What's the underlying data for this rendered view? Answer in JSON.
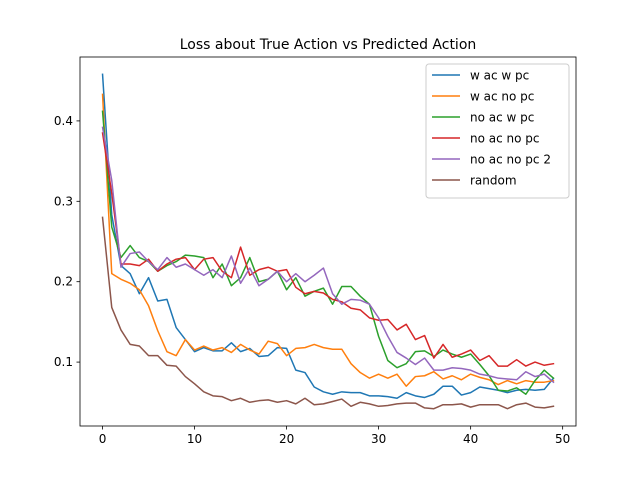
{
  "chart_data": {
    "type": "line",
    "title": "Loss about True Action vs Predicted Action",
    "xlabel": "",
    "ylabel": "",
    "xlim": [
      -2.45,
      51.45
    ],
    "ylim": [
      0.0205,
      0.4795
    ],
    "xticks": [
      0,
      10,
      20,
      30,
      40,
      50
    ],
    "yticks": [
      0.1,
      0.2,
      0.3,
      0.4
    ],
    "grid": false,
    "legend_position": "top-right",
    "x": [
      0,
      1,
      2,
      3,
      4,
      5,
      6,
      7,
      8,
      9,
      10,
      11,
      12,
      13,
      14,
      15,
      16,
      17,
      18,
      19,
      20,
      21,
      22,
      23,
      24,
      25,
      26,
      27,
      28,
      29,
      30,
      31,
      32,
      33,
      34,
      35,
      36,
      37,
      38,
      39,
      40,
      41,
      42,
      43,
      44,
      45,
      46,
      47,
      48,
      49
    ],
    "series": [
      {
        "name": "w ac w pc",
        "color": "#1f77b4",
        "values": [
          0.458,
          0.283,
          0.22,
          0.21,
          0.185,
          0.205,
          0.176,
          0.178,
          0.143,
          0.128,
          0.113,
          0.118,
          0.114,
          0.114,
          0.124,
          0.113,
          0.117,
          0.107,
          0.108,
          0.118,
          0.117,
          0.09,
          0.087,
          0.069,
          0.063,
          0.06,
          0.063,
          0.062,
          0.062,
          0.058,
          0.058,
          0.057,
          0.055,
          0.062,
          0.058,
          0.056,
          0.06,
          0.07,
          0.07,
          0.059,
          0.062,
          0.069,
          0.067,
          0.065,
          0.062,
          0.065,
          0.066,
          0.065,
          0.066,
          0.08
        ]
      },
      {
        "name": "w ac no pc",
        "color": "#ff7f0e",
        "values": [
          0.433,
          0.21,
          0.203,
          0.198,
          0.19,
          0.17,
          0.139,
          0.113,
          0.108,
          0.128,
          0.115,
          0.12,
          0.115,
          0.118,
          0.112,
          0.122,
          0.115,
          0.11,
          0.126,
          0.123,
          0.108,
          0.117,
          0.118,
          0.122,
          0.118,
          0.116,
          0.116,
          0.098,
          0.087,
          0.08,
          0.085,
          0.08,
          0.085,
          0.07,
          0.082,
          0.083,
          0.088,
          0.079,
          0.083,
          0.078,
          0.085,
          0.081,
          0.078,
          0.072,
          0.077,
          0.073,
          0.077,
          0.075,
          0.075,
          0.077
        ]
      },
      {
        "name": "no ac w pc",
        "color": "#2ca02c",
        "values": [
          0.412,
          0.268,
          0.23,
          0.245,
          0.23,
          0.225,
          0.213,
          0.22,
          0.225,
          0.233,
          0.232,
          0.23,
          0.205,
          0.222,
          0.195,
          0.205,
          0.23,
          0.2,
          0.203,
          0.213,
          0.19,
          0.205,
          0.182,
          0.188,
          0.192,
          0.172,
          0.194,
          0.194,
          0.182,
          0.172,
          0.132,
          0.102,
          0.093,
          0.098,
          0.113,
          0.114,
          0.107,
          0.115,
          0.11,
          0.106,
          0.11,
          0.097,
          0.083,
          0.065,
          0.064,
          0.068,
          0.06,
          0.077,
          0.09,
          0.08
        ]
      },
      {
        "name": "no ac no pc",
        "color": "#d62728",
        "values": [
          0.385,
          0.31,
          0.222,
          0.222,
          0.22,
          0.228,
          0.213,
          0.222,
          0.228,
          0.23,
          0.215,
          0.228,
          0.23,
          0.213,
          0.205,
          0.243,
          0.208,
          0.215,
          0.218,
          0.213,
          0.215,
          0.193,
          0.185,
          0.188,
          0.186,
          0.178,
          0.175,
          0.167,
          0.165,
          0.155,
          0.152,
          0.153,
          0.14,
          0.147,
          0.128,
          0.133,
          0.105,
          0.122,
          0.106,
          0.11,
          0.115,
          0.102,
          0.108,
          0.095,
          0.095,
          0.103,
          0.095,
          0.1,
          0.096,
          0.098
        ]
      },
      {
        "name": "no ac no pc 2",
        "color": "#9467bd",
        "values": [
          0.392,
          0.326,
          0.218,
          0.235,
          0.237,
          0.225,
          0.215,
          0.23,
          0.218,
          0.222,
          0.215,
          0.208,
          0.215,
          0.205,
          0.232,
          0.198,
          0.217,
          0.195,
          0.203,
          0.213,
          0.2,
          0.21,
          0.2,
          0.208,
          0.217,
          0.185,
          0.172,
          0.178,
          0.177,
          0.172,
          0.155,
          0.132,
          0.112,
          0.105,
          0.097,
          0.105,
          0.09,
          0.09,
          0.093,
          0.092,
          0.09,
          0.085,
          0.083,
          0.08,
          0.079,
          0.078,
          0.088,
          0.082,
          0.085,
          0.075
        ]
      },
      {
        "name": "random",
        "color": "#8c564b",
        "values": [
          0.28,
          0.168,
          0.14,
          0.122,
          0.12,
          0.108,
          0.108,
          0.096,
          0.095,
          0.082,
          0.073,
          0.063,
          0.058,
          0.057,
          0.052,
          0.055,
          0.05,
          0.052,
          0.053,
          0.05,
          0.052,
          0.048,
          0.055,
          0.047,
          0.048,
          0.051,
          0.054,
          0.045,
          0.05,
          0.048,
          0.045,
          0.046,
          0.048,
          0.049,
          0.049,
          0.043,
          0.042,
          0.047,
          0.047,
          0.048,
          0.044,
          0.047,
          0.047,
          0.047,
          0.042,
          0.047,
          0.049,
          0.044,
          0.043,
          0.045
        ]
      }
    ]
  }
}
